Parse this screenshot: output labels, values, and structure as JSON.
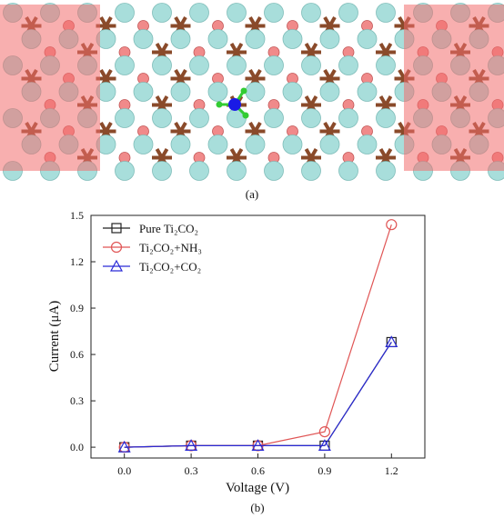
{
  "panel_a": {
    "label": "(a)"
  },
  "panel_b": {
    "label": "(b)"
  },
  "colors": {
    "electrode_overlay": "#f26d6d",
    "titanium_atom": "#a8dedb",
    "carbon_atom": "#8a4a2a",
    "oxygen_atom": "#f08a8a",
    "nitrogen_atom": "#1a1ae6",
    "hydrogen_atom": "#33cc33"
  },
  "chart_data": {
    "type": "line",
    "xlabel": "Voltage (V)",
    "ylabel": "Current (μA)",
    "xlim": [
      -0.15,
      1.35
    ],
    "ylim": [
      -0.07,
      1.5
    ],
    "x": [
      0.0,
      0.3,
      0.6,
      0.9,
      1.2
    ],
    "x_ticks": [
      "0.0",
      "0.3",
      "0.6",
      "0.9",
      "1.2"
    ],
    "y_ticks": [
      "0.0",
      "0.3",
      "0.6",
      "0.9",
      "1.2",
      "1.5"
    ],
    "legend_position": "top-left",
    "series": [
      {
        "name": "Pure Ti₂CO₂",
        "marker": "square",
        "color": "#222222",
        "values": [
          0.0,
          0.01,
          0.01,
          0.01,
          0.68
        ]
      },
      {
        "name": "Ti₂CO₂+NH₃",
        "marker": "circle",
        "color": "#e05555",
        "values": [
          0.0,
          0.01,
          0.01,
          0.1,
          1.44
        ]
      },
      {
        "name": "Ti₂CO₂+CO₂",
        "marker": "triangle",
        "color": "#2a2ad6",
        "values": [
          0.0,
          0.01,
          0.01,
          0.01,
          0.68
        ]
      }
    ]
  }
}
